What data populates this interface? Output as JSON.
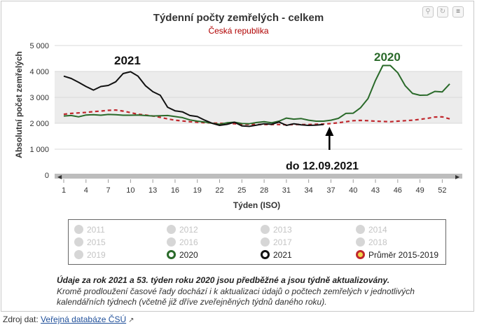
{
  "header": {
    "title": "Týdenní počty zemřelých - celkem",
    "subtitle": "Česká republika"
  },
  "toolbar": {
    "zoom_icon": "zoom-icon",
    "reset_icon": "reset-icon",
    "menu_icon": "menu-icon"
  },
  "chart_data": {
    "type": "line",
    "ylabel": "Absolutní počet zemřelých",
    "xlabel": "Týden (ISO)",
    "ylim": [
      0,
      5000
    ],
    "xlim": [
      1,
      53
    ],
    "y_ticks": [
      "0",
      "1 000",
      "2 000",
      "3 000",
      "4 000",
      "5 000"
    ],
    "x_ticks": [
      "1",
      "4",
      "7",
      "10",
      "13",
      "16",
      "19",
      "22",
      "25",
      "28",
      "31",
      "34",
      "37",
      "40",
      "43",
      "46",
      "49",
      "52"
    ],
    "grid": true,
    "shaded_band": [
      2000,
      4000
    ],
    "series": [
      {
        "name": "2020",
        "color": "#2a6a2a",
        "values": [
          2280,
          2300,
          2250,
          2320,
          2330,
          2310,
          2340,
          2330,
          2310,
          2310,
          2320,
          2300,
          2280,
          2290,
          2300,
          2260,
          2220,
          2130,
          2080,
          2050,
          2000,
          1960,
          2020,
          2040,
          1990,
          1980,
          2030,
          2060,
          2020,
          2080,
          2200,
          2160,
          2180,
          2120,
          2080,
          2080,
          2120,
          2190,
          2380,
          2390,
          2600,
          2950,
          3650,
          4230,
          4230,
          3950,
          3450,
          3150,
          3080,
          3090,
          3230,
          3210,
          3520
        ]
      },
      {
        "name": "2021",
        "color": "#111111",
        "values": [
          3820,
          3730,
          3580,
          3420,
          3280,
          3420,
          3460,
          3600,
          3920,
          3990,
          3820,
          3450,
          3220,
          3080,
          2620,
          2480,
          2440,
          2300,
          2260,
          2120,
          2000,
          1920,
          1960,
          2040,
          1900,
          1880,
          1930,
          1980,
          1960,
          2050,
          1920,
          1980,
          1940,
          1920,
          1930,
          1950
        ]
      },
      {
        "name": "Průměr 2015-2019",
        "color": "#c0272d",
        "dashed": true,
        "values": [
          2350,
          2380,
          2400,
          2420,
          2450,
          2470,
          2500,
          2510,
          2470,
          2410,
          2350,
          2320,
          2280,
          2230,
          2170,
          2120,
          2090,
          2060,
          2040,
          2020,
          2010,
          2000,
          1990,
          1980,
          1960,
          1960,
          1950,
          1950,
          1950,
          1950,
          1940,
          1950,
          1950,
          1950,
          1960,
          1970,
          1990,
          2020,
          2060,
          2100,
          2110,
          2100,
          2080,
          2070,
          2060,
          2080,
          2100,
          2120,
          2150,
          2190,
          2240,
          2250,
          2170
        ]
      }
    ],
    "annotations": {
      "label_2021": "2021",
      "label_2020": "2020",
      "arrow_label": "do 12.09.2021"
    }
  },
  "legend": {
    "items": [
      {
        "label": "2011",
        "active": false
      },
      {
        "label": "2012",
        "active": false
      },
      {
        "label": "2013",
        "active": false
      },
      {
        "label": "2014",
        "active": false
      },
      {
        "label": "2015",
        "active": false
      },
      {
        "label": "2016",
        "active": false
      },
      {
        "label": "2017",
        "active": false
      },
      {
        "label": "2018",
        "active": false
      },
      {
        "label": "2019",
        "active": false
      },
      {
        "label": "2020",
        "active": true,
        "color": "#2a6a2a"
      },
      {
        "label": "2021",
        "active": true,
        "color": "#111111"
      },
      {
        "label": "Průměr 2015-2019",
        "active": true,
        "color": "#c0272d",
        "fill": "#f2d54a"
      }
    ]
  },
  "notes": {
    "bold": "Údaje za rok 2021 a 53. týden roku 2020 jsou předběžné a jsou týdně aktualizovány.",
    "text": "Kromě prodloužení časové řady dochází i k aktualizaci údajů o počtech zemřelých v jednotlivých kalendářních týdnech (včetně již dříve zveřejněných týdnů daného roku)."
  },
  "source": {
    "label": "Zdroj dat:",
    "link": "Veřejná databáze ČSÚ",
    "link_icon": "external-link-icon"
  }
}
